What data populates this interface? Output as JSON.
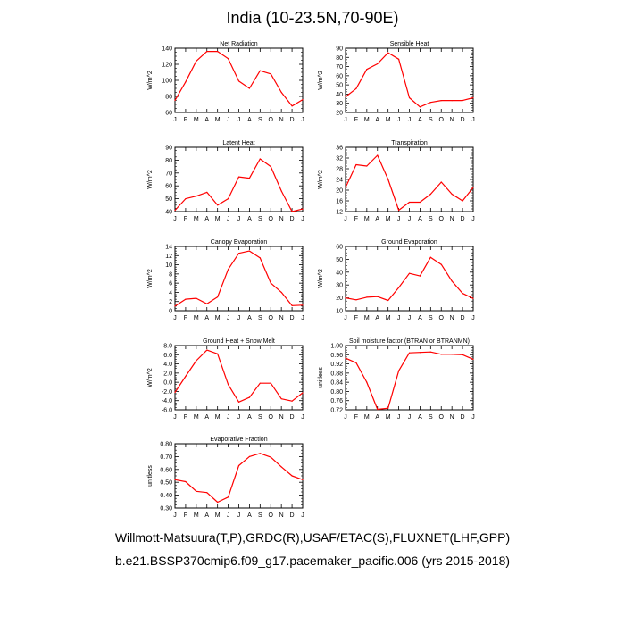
{
  "figure": {
    "title": "India (10-23.5N,70-90E)",
    "footer_line1": "Willmott-Matsuura(T,P),GRDC(R),USAF/ETAC(S),FLUXNET(LHF,GPP)",
    "footer_line2": "b.e21.BSSP370cmip6.f09_g17.pacemaker_pacific.006 (yrs 2015-2018)",
    "series_color": "#ff0000"
  },
  "chart_data": [
    {
      "type": "line",
      "title": "Net Radiation",
      "ylabel": "W/m^2",
      "categories": [
        "J",
        "F",
        "M",
        "A",
        "M",
        "J",
        "J",
        "A",
        "S",
        "O",
        "N",
        "D",
        "J"
      ],
      "ylim": [
        60,
        140
      ],
      "yticks": [
        "60",
        "80",
        "100",
        "120",
        "140"
      ],
      "values": [
        75,
        98,
        124,
        136,
        136,
        127,
        99,
        90,
        112,
        108,
        85,
        68,
        76
      ]
    },
    {
      "type": "line",
      "title": "Sensible Heat",
      "ylabel": "W/m^2",
      "categories": [
        "J",
        "F",
        "M",
        "A",
        "M",
        "J",
        "J",
        "A",
        "S",
        "O",
        "N",
        "D",
        "J"
      ],
      "ylim": [
        20,
        90
      ],
      "yticks": [
        "20",
        "30",
        "40",
        "50",
        "60",
        "70",
        "80",
        "90"
      ],
      "values": [
        37,
        46,
        67,
        73,
        85,
        78,
        36,
        26,
        31,
        33,
        33,
        33,
        36
      ]
    },
    {
      "type": "line",
      "title": "Latent Heat",
      "ylabel": "W/m^2",
      "categories": [
        "J",
        "F",
        "M",
        "A",
        "M",
        "J",
        "J",
        "A",
        "S",
        "O",
        "N",
        "D",
        "J"
      ],
      "ylim": [
        40,
        90
      ],
      "yticks": [
        "40",
        "50",
        "60",
        "70",
        "80",
        "90"
      ],
      "values": [
        41,
        50,
        52,
        55,
        45,
        50,
        67,
        66,
        81,
        75,
        56,
        40,
        42
      ]
    },
    {
      "type": "line",
      "title": "Transpiration",
      "ylabel": "W/m^2",
      "categories": [
        "J",
        "F",
        "M",
        "A",
        "M",
        "J",
        "J",
        "A",
        "S",
        "O",
        "N",
        "D",
        "J"
      ],
      "ylim": [
        12,
        36
      ],
      "yticks": [
        "12",
        "16",
        "20",
        "24",
        "28",
        "32",
        "36"
      ],
      "values": [
        21,
        29.5,
        29,
        33,
        24,
        12.5,
        15.5,
        15.5,
        18.5,
        23,
        18.5,
        16,
        21
      ]
    },
    {
      "type": "line",
      "title": "Canopy Evaporation",
      "ylabel": "W/m^2",
      "categories": [
        "J",
        "F",
        "M",
        "A",
        "M",
        "J",
        "J",
        "A",
        "S",
        "O",
        "N",
        "D",
        "J"
      ],
      "ylim": [
        0,
        14
      ],
      "yticks": [
        "0",
        "2",
        "4",
        "6",
        "8",
        "10",
        "12",
        "14"
      ],
      "values": [
        1,
        2.5,
        2.7,
        1.5,
        3,
        9,
        12.5,
        13,
        11.5,
        6,
        4,
        1.1,
        1.2
      ]
    },
    {
      "type": "line",
      "title": "Ground Evaporation",
      "ylabel": "W/m^2",
      "categories": [
        "J",
        "F",
        "M",
        "A",
        "M",
        "J",
        "J",
        "A",
        "S",
        "O",
        "N",
        "D",
        "J"
      ],
      "ylim": [
        10,
        60
      ],
      "yticks": [
        "10",
        "20",
        "30",
        "40",
        "50",
        "60"
      ],
      "values": [
        20,
        18.5,
        20.5,
        21,
        18,
        28,
        39,
        37,
        51.5,
        46,
        33,
        23.5,
        19.5
      ]
    },
    {
      "type": "line",
      "title": "Ground Heat + Snow Melt",
      "ylabel": "W/m^2",
      "categories": [
        "J",
        "F",
        "M",
        "A",
        "M",
        "J",
        "J",
        "A",
        "S",
        "O",
        "N",
        "D",
        "J"
      ],
      "ylim": [
        -6,
        8
      ],
      "yticks": [
        "-6.0",
        "-4.0",
        "-2.0",
        "0.0",
        "2.0",
        "4.0",
        "6.0",
        "8.0"
      ],
      "values": [
        -2.2,
        1.3,
        4.7,
        7,
        6.2,
        -0.5,
        -4.3,
        -3.3,
        -0.2,
        -0.2,
        -3.6,
        -4.1,
        -2.3
      ]
    },
    {
      "type": "line",
      "title": "Soil moisture factor (BTRAN or BTRANMN)",
      "ylabel": "unitless",
      "categories": [
        "J",
        "F",
        "M",
        "A",
        "M",
        "J",
        "J",
        "A",
        "S",
        "O",
        "N",
        "D",
        "J"
      ],
      "ylim": [
        0.72,
        1.0
      ],
      "yticks": [
        "0.72",
        "0.76",
        "0.80",
        "0.84",
        "0.88",
        "0.92",
        "0.96",
        "1.00"
      ],
      "values": [
        0.945,
        0.925,
        0.84,
        0.722,
        0.727,
        0.89,
        0.968,
        0.97,
        0.972,
        0.962,
        0.962,
        0.96,
        0.94
      ]
    },
    {
      "type": "line",
      "title": "Evaporative Fraction",
      "ylabel": "unitless",
      "categories": [
        "J",
        "F",
        "M",
        "A",
        "M",
        "J",
        "J",
        "A",
        "S",
        "O",
        "N",
        "D",
        "J"
      ],
      "ylim": [
        0.3,
        0.8
      ],
      "yticks": [
        "0.30",
        "0.40",
        "0.50",
        "0.60",
        "0.70",
        "0.80"
      ],
      "values": [
        0.52,
        0.505,
        0.43,
        0.42,
        0.345,
        0.385,
        0.63,
        0.7,
        0.725,
        0.695,
        0.62,
        0.55,
        0.52
      ]
    }
  ]
}
